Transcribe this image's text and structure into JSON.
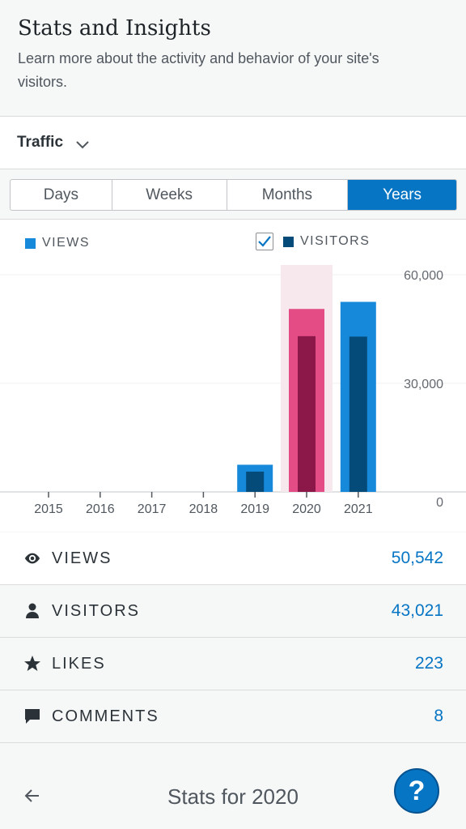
{
  "header": {
    "title": "Stats and Insights",
    "subtitle": "Learn more about the activity and behavior of your site's visitors."
  },
  "module_select": {
    "label": "Traffic",
    "icon": "chevron-down-icon"
  },
  "period_tabs": [
    {
      "label": "Days",
      "active": false
    },
    {
      "label": "Weeks",
      "active": false
    },
    {
      "label": "Months",
      "active": false
    },
    {
      "label": "Years",
      "active": true
    }
  ],
  "legend": {
    "views": "VIEWS",
    "visitors": "VISITORS",
    "visitors_checked": true
  },
  "colors": {
    "views": "#1689db",
    "visitors": "#044b7a",
    "selected_views": "#e34c84",
    "selected_visitors": "#8c1749",
    "selected_band": "#f7e8ee",
    "accent": "#0675c4"
  },
  "chart_data": {
    "type": "bar",
    "categories": [
      "2015",
      "2016",
      "2017",
      "2018",
      "2019",
      "2020",
      "2021"
    ],
    "series": [
      {
        "name": "VIEWS",
        "values": [
          0,
          0,
          0,
          0,
          7500,
          50542,
          52500
        ]
      },
      {
        "name": "VISITORS",
        "values": [
          0,
          0,
          0,
          0,
          5600,
          43021,
          42900
        ]
      }
    ],
    "y_ticks": [
      "60,000",
      "30,000",
      "0"
    ],
    "ylim": [
      0,
      60000
    ],
    "selected_category": "2020",
    "grid": true
  },
  "stats": [
    {
      "label": "VIEWS",
      "value": "50,542",
      "icon": "eye-icon",
      "selected": true
    },
    {
      "label": "VISITORS",
      "value": "43,021",
      "icon": "person-icon",
      "selected": false
    },
    {
      "label": "LIKES",
      "value": "223",
      "icon": "star-icon",
      "selected": false
    },
    {
      "label": "COMMENTS",
      "value": "8",
      "icon": "comment-icon",
      "selected": false
    }
  ],
  "footer": {
    "title": "Stats for 2020",
    "back_icon": "arrow-left-icon",
    "help_label": "?"
  }
}
